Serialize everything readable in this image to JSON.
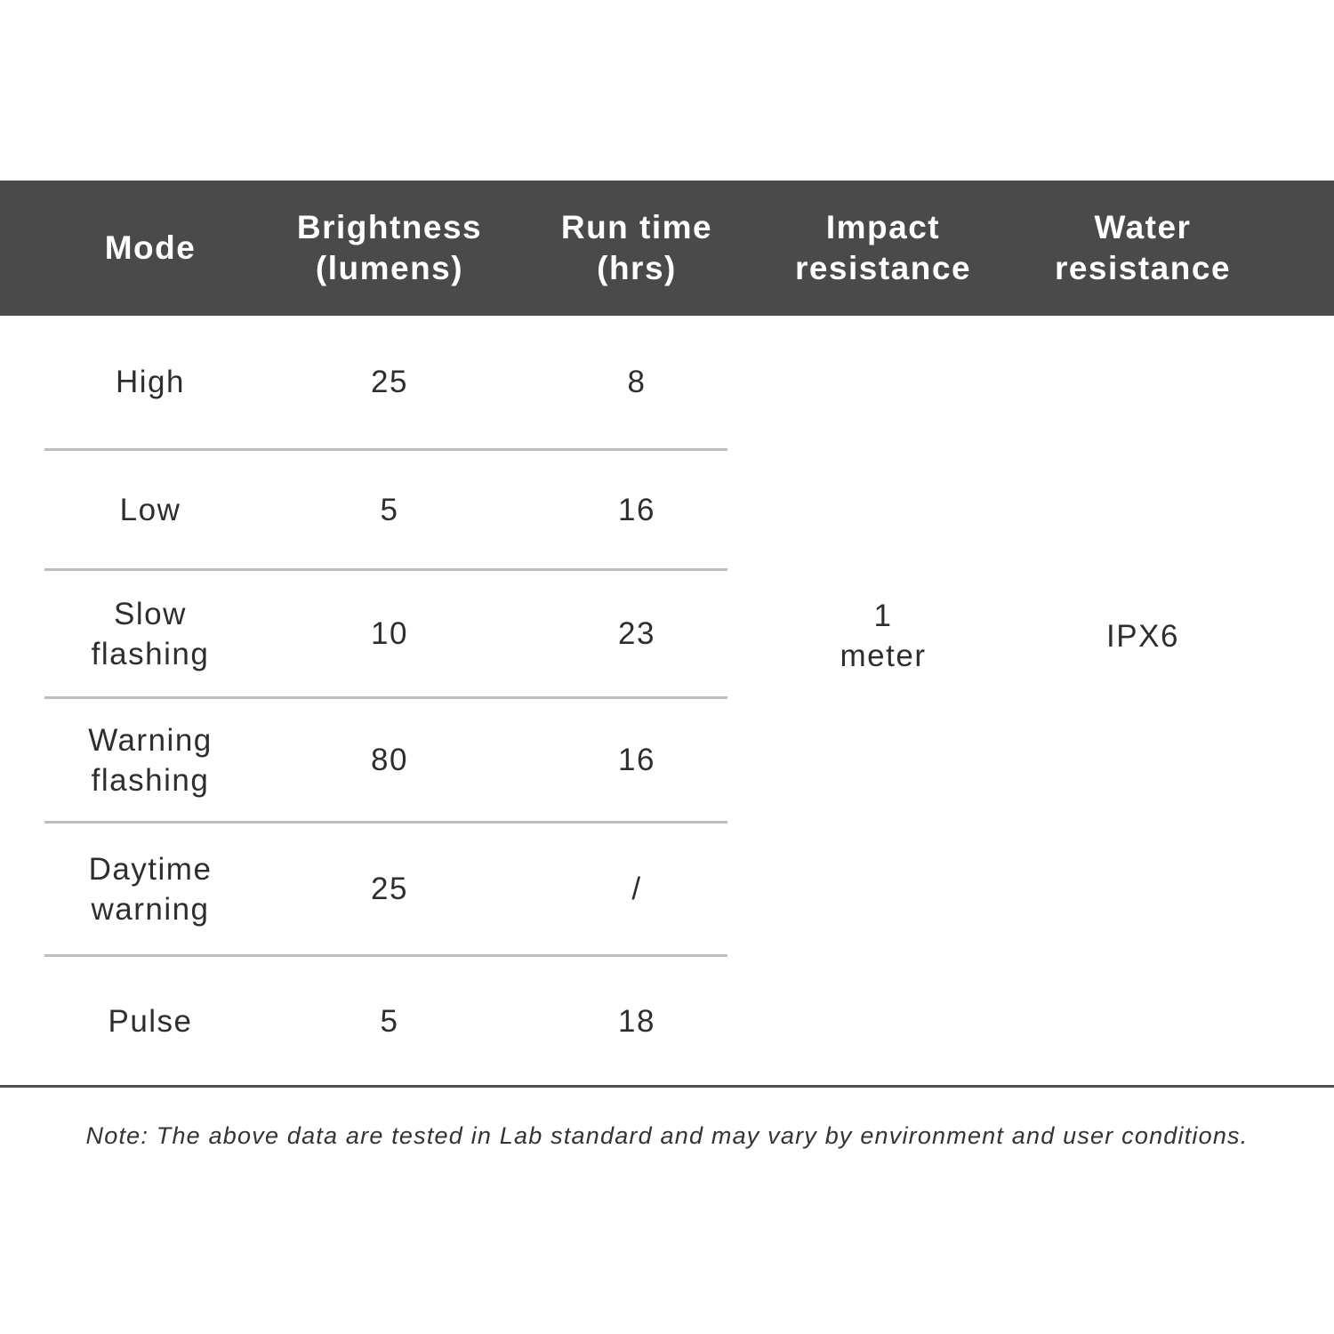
{
  "table": {
    "headers": [
      "Mode",
      "Brightness\n(lumens)",
      "Run time\n(hrs)",
      "Impact\nresistance",
      "Water\nresistance"
    ],
    "rows": [
      {
        "mode": "High",
        "brightness": "25",
        "run_time": "8"
      },
      {
        "mode": "Low",
        "brightness": "5",
        "run_time": "16"
      },
      {
        "mode": "Slow\nflashing",
        "brightness": "10",
        "run_time": "23"
      },
      {
        "mode": "Warning\nflashing",
        "brightness": "80",
        "run_time": "16"
      },
      {
        "mode": "Daytime\nwarning",
        "brightness": "25",
        "run_time": "/"
      },
      {
        "mode": "Pulse",
        "brightness": "5",
        "run_time": "18"
      }
    ],
    "impact_resistance": "1\nmeter",
    "water_resistance": "IPX6"
  },
  "note": "Note: The above data are tested in Lab standard and may vary by environment and user conditions.",
  "colors": {
    "header_bg": "#4a4a4a",
    "divider": "#bdbdbd",
    "text": "#333333"
  }
}
